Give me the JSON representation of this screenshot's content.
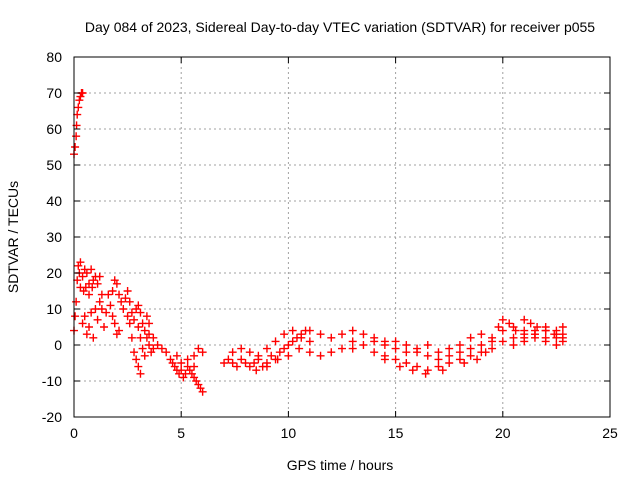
{
  "chart_data": {
    "type": "scatter",
    "title": "Day 084 of 2023, Sidereal Day-to-day VTEC variation (SDTVAR) for receiver p055",
    "xlabel": "GPS time / hours",
    "ylabel": "SDTVAR / TECUs",
    "xlim": [
      0,
      25
    ],
    "ylim": [
      -20,
      80
    ],
    "xticks": [
      "0",
      "5",
      "10",
      "15",
      "20",
      "25"
    ],
    "yticks": [
      "-20",
      "-10",
      "0",
      "10",
      "20",
      "30",
      "40",
      "50",
      "60",
      "70",
      "80"
    ],
    "grid": true,
    "marker": "+",
    "series": [
      {
        "name": "p055",
        "color": "#ff0000",
        "points": [
          [
            0.0,
            53
          ],
          [
            0.05,
            55
          ],
          [
            0.1,
            58
          ],
          [
            0.12,
            61
          ],
          [
            0.15,
            64
          ],
          [
            0.2,
            66
          ],
          [
            0.25,
            68
          ],
          [
            0.3,
            69
          ],
          [
            0.35,
            70
          ],
          [
            0.4,
            70
          ],
          [
            0.0,
            4
          ],
          [
            0.05,
            8
          ],
          [
            0.1,
            12
          ],
          [
            0.15,
            18
          ],
          [
            0.2,
            22
          ],
          [
            0.25,
            20
          ],
          [
            0.3,
            23
          ],
          [
            0.4,
            19
          ],
          [
            0.5,
            21
          ],
          [
            0.6,
            20
          ],
          [
            0.7,
            17
          ],
          [
            0.8,
            21
          ],
          [
            0.9,
            18
          ],
          [
            1.0,
            19
          ],
          [
            0.3,
            16
          ],
          [
            0.45,
            15
          ],
          [
            0.55,
            16
          ],
          [
            0.7,
            14
          ],
          [
            0.85,
            16
          ],
          [
            1.1,
            17
          ],
          [
            1.2,
            19
          ],
          [
            1.3,
            14
          ],
          [
            0.4,
            6
          ],
          [
            0.5,
            8
          ],
          [
            0.6,
            3
          ],
          [
            0.7,
            5
          ],
          [
            0.8,
            9
          ],
          [
            0.9,
            2
          ],
          [
            1.0,
            10
          ],
          [
            1.1,
            7
          ],
          [
            1.2,
            12
          ],
          [
            1.3,
            10
          ],
          [
            1.4,
            5
          ],
          [
            1.5,
            9
          ],
          [
            1.6,
            14
          ],
          [
            1.7,
            11
          ],
          [
            1.8,
            8
          ],
          [
            1.9,
            6
          ],
          [
            2.0,
            3
          ],
          [
            2.1,
            4
          ],
          [
            1.8,
            15
          ],
          [
            1.9,
            18
          ],
          [
            2.0,
            17
          ],
          [
            2.1,
            14
          ],
          [
            2.2,
            12
          ],
          [
            2.3,
            10
          ],
          [
            2.4,
            13
          ],
          [
            2.5,
            8
          ],
          [
            2.6,
            6
          ],
          [
            2.7,
            2
          ],
          [
            2.8,
            -2
          ],
          [
            2.9,
            -4
          ],
          [
            3.0,
            -6
          ],
          [
            3.1,
            -8
          ],
          [
            2.5,
            15
          ],
          [
            2.6,
            12
          ],
          [
            2.7,
            9
          ],
          [
            2.8,
            7
          ],
          [
            2.9,
            10
          ],
          [
            3.0,
            5
          ],
          [
            3.1,
            2
          ],
          [
            3.2,
            -1
          ],
          [
            3.3,
            -3
          ],
          [
            3.0,
            11
          ],
          [
            3.1,
            9
          ],
          [
            3.2,
            6
          ],
          [
            3.3,
            4
          ],
          [
            3.4,
            2
          ],
          [
            3.5,
            0
          ],
          [
            3.6,
            -2
          ],
          [
            3.4,
            8
          ],
          [
            3.5,
            6
          ],
          [
            3.5,
            3
          ],
          [
            3.7,
            -1
          ],
          [
            3.7,
            2
          ],
          [
            3.9,
            0
          ],
          [
            4.1,
            -1
          ],
          [
            4.3,
            -2
          ],
          [
            4.5,
            -4
          ],
          [
            4.6,
            -5
          ],
          [
            4.7,
            -6
          ],
          [
            4.8,
            -7
          ],
          [
            4.9,
            -8
          ],
          [
            5.0,
            -7
          ],
          [
            5.1,
            -9
          ],
          [
            5.2,
            -8
          ],
          [
            5.3,
            -6
          ],
          [
            5.4,
            -7
          ],
          [
            5.5,
            -8
          ],
          [
            5.6,
            -9
          ],
          [
            5.7,
            -10
          ],
          [
            5.8,
            -11
          ],
          [
            5.9,
            -12
          ],
          [
            6.0,
            -13
          ],
          [
            4.8,
            -3
          ],
          [
            5.0,
            -5
          ],
          [
            5.3,
            -4
          ],
          [
            5.6,
            -3
          ],
          [
            5.8,
            -1
          ],
          [
            6.0,
            -2
          ],
          [
            5.6,
            -6
          ],
          [
            7.0,
            -5
          ],
          [
            7.2,
            -4
          ],
          [
            7.4,
            -5
          ],
          [
            7.6,
            -6
          ],
          [
            7.8,
            -4
          ],
          [
            8.0,
            -5
          ],
          [
            8.2,
            -6
          ],
          [
            8.4,
            -5
          ],
          [
            8.6,
            -4
          ],
          [
            8.8,
            -6
          ],
          [
            9.0,
            -5
          ],
          [
            9.2,
            -3
          ],
          [
            9.4,
            -4
          ],
          [
            9.6,
            -2
          ],
          [
            9.8,
            -1
          ],
          [
            10.0,
            0
          ],
          [
            10.2,
            1
          ],
          [
            10.4,
            2
          ],
          [
            10.6,
            3
          ],
          [
            10.8,
            4
          ],
          [
            7.4,
            -2
          ],
          [
            7.8,
            -1
          ],
          [
            8.2,
            -2
          ],
          [
            8.6,
            -3
          ],
          [
            9.0,
            -1
          ],
          [
            9.4,
            1
          ],
          [
            9.8,
            3
          ],
          [
            10.2,
            4
          ],
          [
            10.6,
            2
          ],
          [
            11.0,
            1
          ],
          [
            8.5,
            -7
          ],
          [
            9.0,
            -6
          ],
          [
            9.5,
            -4
          ],
          [
            10.0,
            -3
          ],
          [
            10.5,
            -1
          ],
          [
            11.0,
            -2
          ],
          [
            11.5,
            -3
          ],
          [
            12.0,
            -2
          ],
          [
            12.5,
            -1
          ],
          [
            13.0,
            1
          ],
          [
            11.0,
            4
          ],
          [
            11.5,
            3
          ],
          [
            12.0,
            2
          ],
          [
            12.5,
            3
          ],
          [
            13.0,
            4
          ],
          [
            13.5,
            3
          ],
          [
            14.0,
            2
          ],
          [
            14.5,
            1
          ],
          [
            13.0,
            -1
          ],
          [
            13.5,
            0
          ],
          [
            14.0,
            1
          ],
          [
            14.5,
            0
          ],
          [
            15.0,
            -1
          ],
          [
            15.5,
            -2
          ],
          [
            16.0,
            -1
          ],
          [
            16.5,
            0
          ],
          [
            17.0,
            -2
          ],
          [
            17.5,
            -1
          ],
          [
            14.5,
            -3
          ],
          [
            15.0,
            -4
          ],
          [
            15.5,
            -5
          ],
          [
            16.0,
            -6
          ],
          [
            16.5,
            -7
          ],
          [
            17.0,
            -6
          ],
          [
            17.5,
            -5
          ],
          [
            18.0,
            -4
          ],
          [
            18.5,
            -3
          ],
          [
            15.0,
            1
          ],
          [
            15.5,
            0
          ],
          [
            16.0,
            -2
          ],
          [
            16.5,
            -3
          ],
          [
            17.0,
            -4
          ],
          [
            17.5,
            -3
          ],
          [
            18.0,
            -2
          ],
          [
            18.5,
            -1
          ],
          [
            19.0,
            0
          ],
          [
            19.5,
            1
          ],
          [
            14.0,
            -2
          ],
          [
            14.5,
            -4
          ],
          [
            15.2,
            -6
          ],
          [
            15.8,
            -7
          ],
          [
            16.4,
            -8
          ],
          [
            17.2,
            -7
          ],
          [
            18.2,
            -5
          ],
          [
            18.8,
            -4
          ],
          [
            19.2,
            -2
          ],
          [
            18.0,
            0
          ],
          [
            18.5,
            2
          ],
          [
            19.0,
            3
          ],
          [
            19.5,
            2
          ],
          [
            20.0,
            4
          ],
          [
            20.5,
            5
          ],
          [
            21.0,
            4
          ],
          [
            21.5,
            3
          ],
          [
            22.0,
            2
          ],
          [
            22.5,
            3
          ],
          [
            19.0,
            -2
          ],
          [
            19.5,
            -1
          ],
          [
            20.0,
            1
          ],
          [
            20.5,
            2
          ],
          [
            21.0,
            3
          ],
          [
            21.5,
            4
          ],
          [
            22.0,
            5
          ],
          [
            22.5,
            4
          ],
          [
            22.8,
            3
          ],
          [
            19.8,
            5
          ],
          [
            20.0,
            7
          ],
          [
            20.3,
            6
          ],
          [
            20.6,
            4
          ],
          [
            21.0,
            2
          ],
          [
            21.5,
            3
          ],
          [
            22.0,
            4
          ],
          [
            22.5,
            2
          ],
          [
            22.8,
            1
          ],
          [
            21.0,
            7
          ],
          [
            21.3,
            6
          ],
          [
            21.6,
            5
          ],
          [
            22.0,
            4
          ],
          [
            22.4,
            3
          ],
          [
            22.8,
            5
          ],
          [
            20.5,
            0
          ],
          [
            21.0,
            1
          ],
          [
            21.5,
            2
          ],
          [
            22.0,
            1
          ],
          [
            22.5,
            0
          ],
          [
            22.8,
            2
          ]
        ]
      }
    ]
  }
}
